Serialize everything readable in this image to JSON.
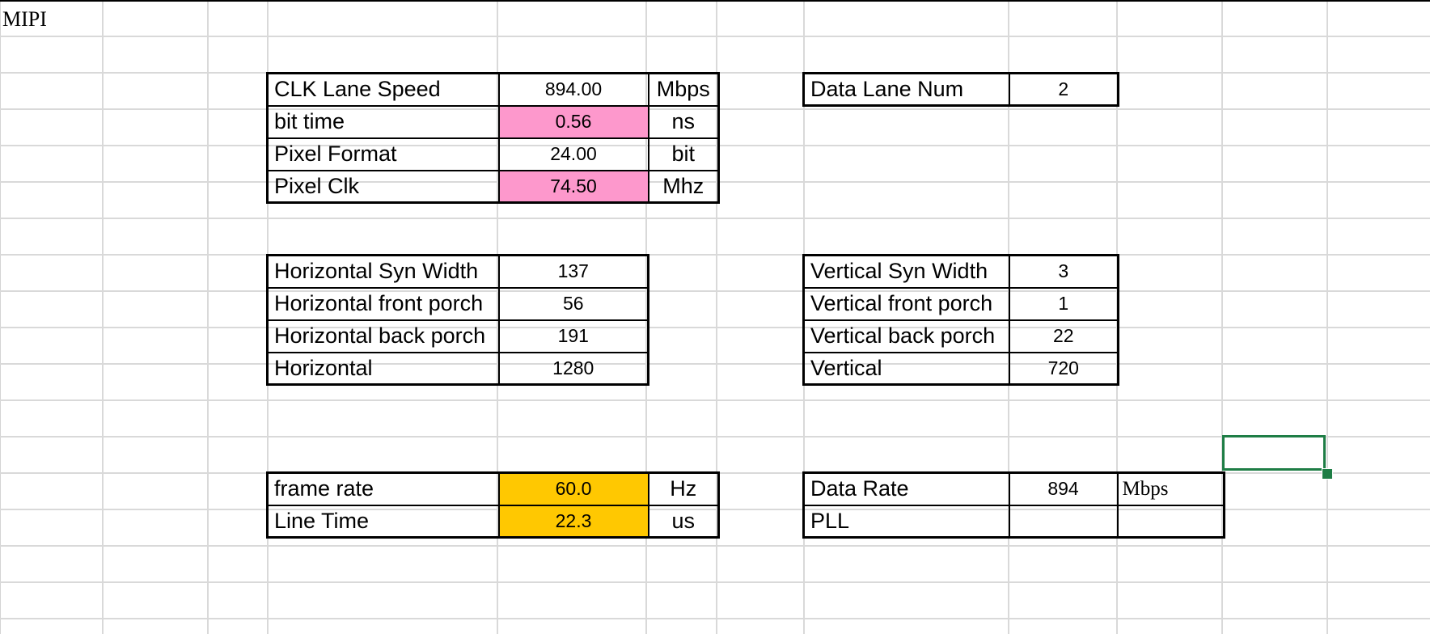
{
  "sheet": {
    "title_cell": "MIPI"
  },
  "clock_table": {
    "rows": [
      {
        "label": "CLK Lane Speed",
        "value": "894.00",
        "unit": "Mbps"
      },
      {
        "label": "bit time",
        "value": "0.56",
        "unit": "ns"
      },
      {
        "label": "Pixel Format",
        "value": "24.00",
        "unit": "bit"
      },
      {
        "label": "Pixel Clk",
        "value": "74.50",
        "unit": "Mhz"
      }
    ]
  },
  "lane_table": {
    "rows": [
      {
        "label": "Data Lane Num",
        "value": "2"
      }
    ]
  },
  "horizontal_table": {
    "rows": [
      {
        "label": "Horizontal Syn Width",
        "value": "137"
      },
      {
        "label": "Horizontal front porch",
        "value": "56"
      },
      {
        "label": "Horizontal back porch",
        "value": "191"
      },
      {
        "label": "Horizontal",
        "value": "1280"
      }
    ]
  },
  "vertical_table": {
    "rows": [
      {
        "label": "Vertical Syn Width",
        "value": "3"
      },
      {
        "label": "Vertical front porch",
        "value": "1"
      },
      {
        "label": "Vertical back porch",
        "value": "22"
      },
      {
        "label": "Vertical",
        "value": "720"
      }
    ]
  },
  "timing_table": {
    "rows": [
      {
        "label": "frame rate",
        "value": "60.0",
        "unit": "Hz"
      },
      {
        "label": "Line Time",
        "value": "22.3",
        "unit": "us"
      }
    ]
  },
  "rate_table": {
    "rows": [
      {
        "label": "Data Rate",
        "value": "894",
        "unit": "Mbps"
      },
      {
        "label": "PLL",
        "value": "",
        "unit": ""
      }
    ]
  },
  "colors": {
    "pink_fill": "#fd98cc",
    "gold_fill": "#ffc801",
    "selection_border": "#1e7d45",
    "grid_line": "#d9d9d9"
  }
}
